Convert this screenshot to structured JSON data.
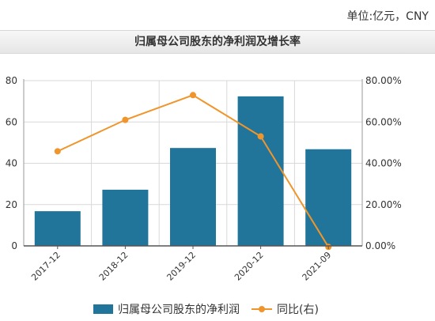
{
  "unit": "单位:亿元，CNY",
  "colors": {
    "bar": "#21759b",
    "line": "#f0952c",
    "grid": "#d9d9d9",
    "axis": "#999999"
  },
  "chart_data": {
    "type": "bar",
    "title": "归属母公司股东的净利润及增长率",
    "categories": [
      "2017-12",
      "2018-12",
      "2019-12",
      "2020-12",
      "2021-09"
    ],
    "series": [
      {
        "name": "归属母公司股东的净利润",
        "type": "bar",
        "axis": "left",
        "values": [
          16.8,
          27.2,
          47.4,
          72.4,
          46.8
        ]
      },
      {
        "name": "同比(右)",
        "type": "line",
        "axis": "right",
        "values": [
          45.8,
          61.0,
          73.0,
          53.0,
          -0.5
        ]
      }
    ],
    "left_axis": {
      "range": [
        0,
        80
      ],
      "ticks": [
        "80",
        "60",
        "40",
        "20",
        "0"
      ],
      "tick_values": [
        80,
        60,
        40,
        20,
        0
      ]
    },
    "right_axis": {
      "range": [
        0,
        80
      ],
      "ticks": [
        "80.00%",
        "60.00%",
        "40.00%",
        "20.00%",
        "0.00%"
      ],
      "tick_values": [
        80,
        60,
        40,
        20,
        0
      ]
    },
    "grid": true,
    "legend_position": "bottom"
  }
}
